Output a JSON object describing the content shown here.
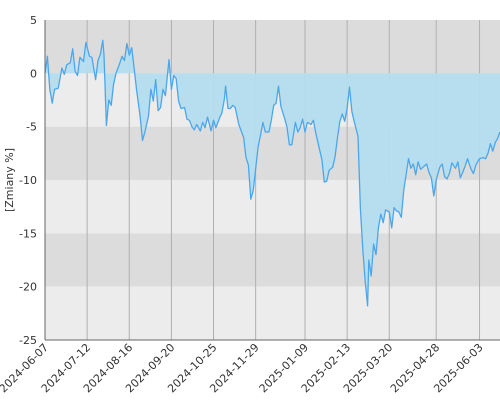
{
  "chart_data": {
    "type": "area",
    "ylabel": "[Zmiany %]",
    "ylim": [
      -25,
      5
    ],
    "yticks": [
      5,
      0,
      -5,
      -10,
      -15,
      -20,
      -25
    ],
    "xlim": [
      "2024-06-07",
      "2025-06-20"
    ],
    "xticks": [
      "2024-06-07",
      "2024-07-12",
      "2024-08-16",
      "2024-09-20",
      "2024-10-25",
      "2024-11-29",
      "2025-01-09",
      "2025-02-13",
      "2025-03-20",
      "2025-04-28",
      "2025-06-03"
    ],
    "grid": true,
    "series": [
      {
        "points": [
          [
            "2024-06-07",
            0.0
          ],
          [
            "2024-06-09",
            1.6
          ],
          [
            "2024-06-11",
            -1.5
          ],
          [
            "2024-06-13",
            -2.8
          ],
          [
            "2024-06-15",
            -1.5
          ],
          [
            "2024-06-18",
            -1.4
          ],
          [
            "2024-06-21",
            0.5
          ],
          [
            "2024-06-23",
            -0.1
          ],
          [
            "2024-06-25",
            0.8
          ],
          [
            "2024-06-28",
            1.0
          ],
          [
            "2024-06-30",
            2.3
          ],
          [
            "2024-07-02",
            0.2
          ],
          [
            "2024-07-04",
            -0.2
          ],
          [
            "2024-07-06",
            1.5
          ],
          [
            "2024-07-09",
            1.1
          ],
          [
            "2024-07-11",
            2.9
          ],
          [
            "2024-07-14",
            1.6
          ],
          [
            "2024-07-16",
            1.5
          ],
          [
            "2024-07-19",
            -0.6
          ],
          [
            "2024-07-21",
            1.2
          ],
          [
            "2024-07-23",
            1.8
          ],
          [
            "2024-07-25",
            3.1
          ],
          [
            "2024-07-26",
            1.7
          ],
          [
            "2024-07-28",
            -4.9
          ],
          [
            "2024-07-30",
            -2.5
          ],
          [
            "2024-08-01",
            -3.0
          ],
          [
            "2024-08-03",
            -1.0
          ],
          [
            "2024-08-05",
            0.0
          ],
          [
            "2024-08-08",
            0.9
          ],
          [
            "2024-08-10",
            1.6
          ],
          [
            "2024-08-12",
            1.2
          ],
          [
            "2024-08-14",
            2.8
          ],
          [
            "2024-08-16",
            1.7
          ],
          [
            "2024-08-18",
            2.4
          ],
          [
            "2024-08-20",
            0.5
          ],
          [
            "2024-08-22",
            -1.5
          ],
          [
            "2024-08-25",
            -4.0
          ],
          [
            "2024-08-27",
            -6.3
          ],
          [
            "2024-08-29",
            -5.5
          ],
          [
            "2024-09-01",
            -4.0
          ],
          [
            "2024-09-03",
            -1.5
          ],
          [
            "2024-09-05",
            -2.6
          ],
          [
            "2024-09-07",
            -0.6
          ],
          [
            "2024-09-09",
            -3.5
          ],
          [
            "2024-09-11",
            -3.2
          ],
          [
            "2024-09-13",
            -1.5
          ],
          [
            "2024-09-15",
            -2.1
          ],
          [
            "2024-09-18",
            1.3
          ],
          [
            "2024-09-20",
            -1.5
          ],
          [
            "2024-09-22",
            -0.2
          ],
          [
            "2024-09-24",
            -0.5
          ],
          [
            "2024-09-26",
            -2.6
          ],
          [
            "2024-09-28",
            -3.3
          ],
          [
            "2024-10-01",
            -3.2
          ],
          [
            "2024-10-03",
            -4.3
          ],
          [
            "2024-10-05",
            -4.4
          ],
          [
            "2024-10-07",
            -5.0
          ],
          [
            "2024-10-09",
            -5.3
          ],
          [
            "2024-10-11",
            -4.8
          ],
          [
            "2024-10-14",
            -5.4
          ],
          [
            "2024-10-16",
            -4.6
          ],
          [
            "2024-10-18",
            -5.1
          ],
          [
            "2024-10-20",
            -4.1
          ],
          [
            "2024-10-23",
            -5.4
          ],
          [
            "2024-10-25",
            -4.4
          ],
          [
            "2024-10-27",
            -5.1
          ],
          [
            "2024-10-30",
            -4.2
          ],
          [
            "2024-11-01",
            -3.7
          ],
          [
            "2024-11-03",
            -2.4
          ],
          [
            "2024-11-04",
            -1.2
          ],
          [
            "2024-11-06",
            -3.3
          ],
          [
            "2024-11-08",
            -3.3
          ],
          [
            "2024-11-10",
            -3.0
          ],
          [
            "2024-11-12",
            -3.2
          ],
          [
            "2024-11-15",
            -4.8
          ],
          [
            "2024-11-17",
            -5.4
          ],
          [
            "2024-11-19",
            -6.0
          ],
          [
            "2024-11-21",
            -7.9
          ],
          [
            "2024-11-23",
            -8.6
          ],
          [
            "2024-11-25",
            -11.8
          ],
          [
            "2024-11-27",
            -11.0
          ],
          [
            "2024-11-29",
            -9.0
          ],
          [
            "2024-12-01",
            -6.9
          ],
          [
            "2024-12-03",
            -5.8
          ],
          [
            "2024-12-05",
            -4.6
          ],
          [
            "2024-12-07",
            -5.5
          ],
          [
            "2024-12-10",
            -5.5
          ],
          [
            "2024-12-12",
            -4.4
          ],
          [
            "2024-12-14",
            -3.0
          ],
          [
            "2024-12-16",
            -2.8
          ],
          [
            "2024-12-18",
            -1.2
          ],
          [
            "2024-12-20",
            -3.1
          ],
          [
            "2024-12-23",
            -4.2
          ],
          [
            "2024-12-25",
            -5.0
          ],
          [
            "2024-12-27",
            -6.7
          ],
          [
            "2024-12-29",
            -6.7
          ],
          [
            "2025-01-01",
            -4.6
          ],
          [
            "2025-01-03",
            -5.5
          ],
          [
            "2025-01-05",
            -5.1
          ],
          [
            "2025-01-07",
            -4.3
          ],
          [
            "2025-01-09",
            -5.5
          ],
          [
            "2025-01-11",
            -4.6
          ],
          [
            "2025-01-14",
            -4.8
          ],
          [
            "2025-01-16",
            -4.4
          ],
          [
            "2025-01-18",
            -5.6
          ],
          [
            "2025-01-20",
            -6.6
          ],
          [
            "2025-01-23",
            -8.1
          ],
          [
            "2025-01-25",
            -10.2
          ],
          [
            "2025-01-27",
            -10.1
          ],
          [
            "2025-01-29",
            -9.1
          ],
          [
            "2025-02-01",
            -8.8
          ],
          [
            "2025-02-03",
            -7.8
          ],
          [
            "2025-02-05",
            -6.0
          ],
          [
            "2025-02-07",
            -4.5
          ],
          [
            "2025-02-09",
            -3.8
          ],
          [
            "2025-02-11",
            -4.5
          ],
          [
            "2025-02-13",
            -3.3
          ],
          [
            "2025-02-15",
            -1.3
          ],
          [
            "2025-02-17",
            -3.6
          ],
          [
            "2025-02-19",
            -4.6
          ],
          [
            "2025-02-22",
            -5.9
          ],
          [
            "2025-02-24",
            -12.7
          ],
          [
            "2025-02-26",
            -16.5
          ],
          [
            "2025-02-28",
            -19.5
          ],
          [
            "2025-03-02",
            -21.8
          ],
          [
            "2025-03-03",
            -17.5
          ],
          [
            "2025-03-05",
            -19.0
          ],
          [
            "2025-03-07",
            -16.0
          ],
          [
            "2025-03-09",
            -17.0
          ],
          [
            "2025-03-11",
            -14.5
          ],
          [
            "2025-03-13",
            -13.2
          ],
          [
            "2025-03-15",
            -14.0
          ],
          [
            "2025-03-17",
            -12.8
          ],
          [
            "2025-03-20",
            -13.0
          ],
          [
            "2025-03-22",
            -14.5
          ],
          [
            "2025-03-24",
            -12.6
          ],
          [
            "2025-03-26",
            -12.9
          ],
          [
            "2025-03-28",
            -13.0
          ],
          [
            "2025-03-30",
            -13.5
          ],
          [
            "2025-04-01",
            -11.0
          ],
          [
            "2025-04-03",
            -9.5
          ],
          [
            "2025-04-05",
            -8.0
          ],
          [
            "2025-04-07",
            -8.9
          ],
          [
            "2025-04-09",
            -8.5
          ],
          [
            "2025-04-11",
            -9.5
          ],
          [
            "2025-04-13",
            -8.3
          ],
          [
            "2025-04-15",
            -9.0
          ],
          [
            "2025-04-18",
            -8.7
          ],
          [
            "2025-04-20",
            -8.5
          ],
          [
            "2025-04-22",
            -9.3
          ],
          [
            "2025-04-24",
            -9.8
          ],
          [
            "2025-04-26",
            -11.5
          ],
          [
            "2025-04-28",
            -10.0
          ],
          [
            "2025-05-01",
            -8.8
          ],
          [
            "2025-05-03",
            -8.5
          ],
          [
            "2025-05-05",
            -9.7
          ],
          [
            "2025-05-07",
            -9.9
          ],
          [
            "2025-05-09",
            -9.4
          ],
          [
            "2025-05-11",
            -8.4
          ],
          [
            "2025-05-14",
            -8.9
          ],
          [
            "2025-05-16",
            -8.3
          ],
          [
            "2025-05-18",
            -9.8
          ],
          [
            "2025-05-20",
            -9.3
          ],
          [
            "2025-05-22",
            -8.7
          ],
          [
            "2025-05-24",
            -8.0
          ],
          [
            "2025-05-27",
            -9.0
          ],
          [
            "2025-05-29",
            -9.4
          ],
          [
            "2025-05-31",
            -8.6
          ],
          [
            "2025-06-03",
            -8.0
          ],
          [
            "2025-06-06",
            -7.9
          ],
          [
            "2025-06-08",
            -8.0
          ],
          [
            "2025-06-10",
            -7.5
          ],
          [
            "2025-06-12",
            -6.6
          ],
          [
            "2025-06-14",
            -7.3
          ],
          [
            "2025-06-16",
            -6.5
          ],
          [
            "2025-06-18",
            -6.1
          ],
          [
            "2025-06-20",
            -5.5
          ]
        ]
      }
    ],
    "colors": {
      "line": "#4da6ea",
      "fill": "#b3ddee",
      "band_dark": "#dcdcdc",
      "band_light": "#ececec",
      "grid": "#b0b0b0",
      "axis": "#666666",
      "text": "#333333"
    }
  }
}
